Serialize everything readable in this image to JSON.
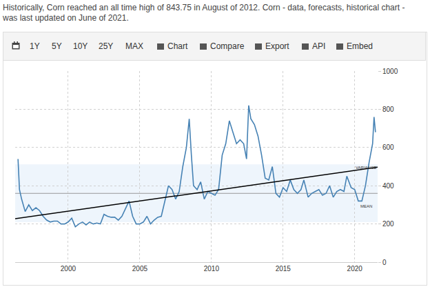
{
  "header": {
    "lines": [
      "Historically, Corn reached an all time high of 843.75 in August of 2012. Corn - data, forecasts, historical chart -",
      "was last updated on June of 2021."
    ]
  },
  "toolbar": [
    "1Y",
    "5Y",
    "10Y",
    "25Y",
    "MAX",
    "Chart",
    "Compare",
    "Export",
    "API",
    "Embed"
  ],
  "chart_data": {
    "type": "line",
    "x": [
      1996.5,
      1996.6,
      1996.75,
      1997,
      1997.25,
      1997.5,
      1997.75,
      1998,
      1998.25,
      1998.5,
      1998.75,
      1999,
      1999.25,
      1999.5,
      1999.75,
      2000,
      2000.25,
      2000.5,
      2000.75,
      2001,
      2001.25,
      2001.5,
      2001.75,
      2002,
      2002.25,
      2002.5,
      2002.75,
      2003,
      2003.25,
      2003.5,
      2003.75,
      2004,
      2004.25,
      2004.5,
      2004.75,
      2005,
      2005.25,
      2005.5,
      2005.75,
      2006,
      2006.25,
      2006.5,
      2006.75,
      2007,
      2007.25,
      2007.5,
      2007.75,
      2008,
      2008.25,
      2008.45,
      2008.6,
      2008.75,
      2009,
      2009.25,
      2009.5,
      2009.75,
      2010,
      2010.25,
      2010.5,
      2010.75,
      2011,
      2011.25,
      2011.5,
      2011.75,
      2012,
      2012.25,
      2012.45,
      2012.6,
      2012.75,
      2013,
      2013.25,
      2013.5,
      2013.75,
      2014,
      2014.25,
      2014.5,
      2014.75,
      2015,
      2015.25,
      2015.5,
      2015.75,
      2016,
      2016.25,
      2016.45,
      2016.75,
      2017,
      2017.25,
      2017.5,
      2017.75,
      2018,
      2018.25,
      2018.5,
      2018.75,
      2019,
      2019.25,
      2019.45,
      2019.75,
      2020,
      2020.25,
      2020.5,
      2020.75,
      2021,
      2021.25,
      2021.35,
      2021.45
    ],
    "series": [
      {
        "color": "#4682b4",
        "values": [
          540,
          380,
          330,
          265,
          300,
          270,
          285,
          270,
          240,
          220,
          210,
          215,
          215,
          200,
          200,
          210,
          230,
          185,
          200,
          210,
          195,
          210,
          200,
          205,
          200,
          250,
          240,
          235,
          235,
          220,
          240,
          280,
          320,
          240,
          200,
          200,
          210,
          240,
          200,
          220,
          235,
          240,
          320,
          400,
          380,
          330,
          370,
          500,
          600,
          750,
          560,
          400,
          380,
          420,
          330,
          370,
          360,
          350,
          380,
          560,
          620,
          740,
          680,
          620,
          640,
          620,
          540,
          820,
          750,
          720,
          660,
          560,
          440,
          430,
          500,
          360,
          340,
          390,
          370,
          430,
          380,
          360,
          380,
          430,
          340,
          360,
          370,
          380,
          350,
          360,
          400,
          340,
          370,
          380,
          370,
          450,
          390,
          380,
          320,
          320,
          400,
          520,
          620,
          760,
          680
        ]
      }
    ],
    "trend": {
      "x": [
        1996.3,
        2021.6
      ],
      "values": [
        227,
        497
      ],
      "color": "#000000"
    },
    "variance": {
      "lo": 209,
      "hi": 512,
      "label": "VARIANCE",
      "color": "#eef5fc"
    },
    "mean": {
      "value": 360,
      "label": "MEAN",
      "color": "#999999"
    },
    "xlim": [
      1996.3,
      2021.6
    ],
    "xticks": [
      2000,
      2005,
      2010,
      2015,
      2020
    ],
    "ylim": [
      0,
      1000
    ],
    "yticks": [
      0,
      200,
      400,
      600,
      800,
      1000
    ],
    "grid": true
  }
}
